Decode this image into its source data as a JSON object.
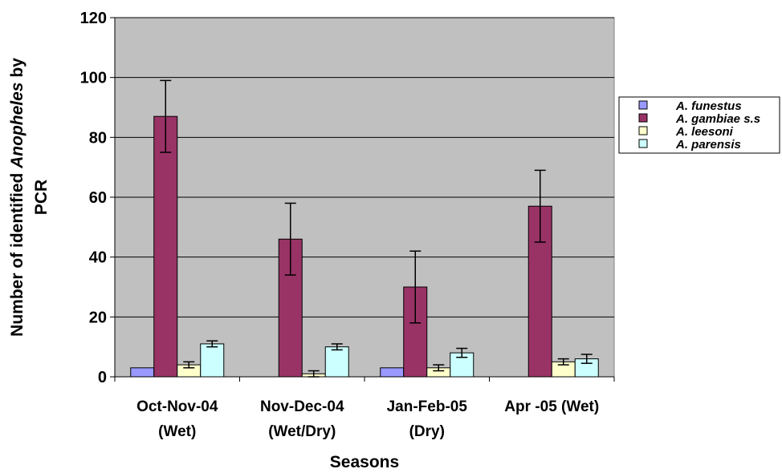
{
  "chart_data": {
    "type": "bar",
    "title": "",
    "xlabel": "Seasons",
    "ylabel_line1_plain": "Number of identified ",
    "ylabel_line1_italic": "Anopheles",
    "ylabel_line1_tail": " by",
    "ylabel_line2": "PCR",
    "ylim": [
      0,
      120
    ],
    "yticks": [
      "0",
      "20",
      "40",
      "60",
      "80",
      "100",
      "120"
    ],
    "categories": [
      [
        "Oct-Nov-04",
        "(Wet)"
      ],
      [
        "Nov-Dec-04",
        "(Wet/Dry)"
      ],
      [
        "Jan-Feb-05",
        "(Dry)"
      ],
      [
        "Apr -05 (Wet)"
      ]
    ],
    "series": [
      {
        "name": "A. funestus",
        "color": "#9999ff",
        "values": [
          3,
          0,
          3,
          0
        ],
        "errors": [
          0,
          0,
          0,
          0
        ]
      },
      {
        "name": "A. gambiae s.s",
        "color": "#993366",
        "values": [
          87,
          46,
          30,
          57
        ],
        "errors": [
          12,
          12,
          12,
          12
        ]
      },
      {
        "name": "A. leesoni",
        "color": "#ffffcc",
        "values": [
          4,
          1,
          3,
          5
        ],
        "errors": [
          1,
          1,
          1,
          1
        ]
      },
      {
        "name": "A. parensis",
        "color": "#ccffff",
        "values": [
          11,
          10,
          8,
          6
        ],
        "errors": [
          1,
          1,
          1.5,
          1.5
        ]
      }
    ],
    "plot_background": "#c0c0c0",
    "grid": true,
    "legend_position": "right"
  }
}
